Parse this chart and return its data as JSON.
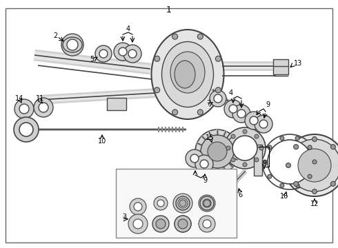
{
  "title": "1",
  "bg_color": "#ffffff",
  "lc": "#444444",
  "tc": "#000000",
  "figsize": [
    4.9,
    3.6
  ],
  "dpi": 100
}
